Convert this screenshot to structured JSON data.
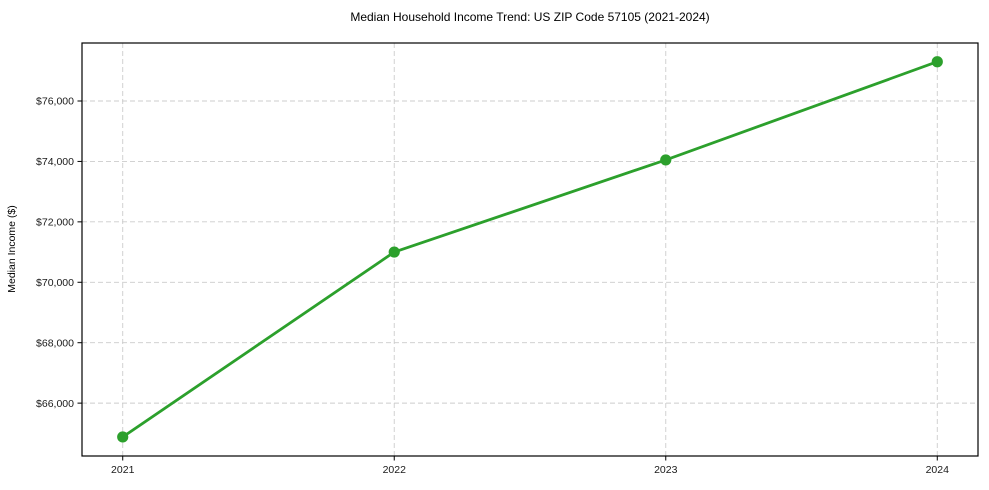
{
  "chart_data": {
    "type": "line",
    "title": "Median Household Income Trend: US ZIP Code 57105 (2021-2024)",
    "ylabel": "Median Income ($)",
    "xlabel": "",
    "x": [
      2021,
      2022,
      2023,
      2024
    ],
    "values": [
      64880,
      71000,
      74050,
      77300
    ],
    "xtick_labels": [
      "2021",
      "2022",
      "2023",
      "2024"
    ],
    "ytick_values": [
      66000,
      68000,
      70000,
      72000,
      74000,
      76000
    ],
    "ytick_labels": [
      "$66,000",
      "$68,000",
      "$70,000",
      "$72,000",
      "$74,000",
      "$76,000"
    ],
    "xlim": [
      2020.85,
      2024.15
    ],
    "ylim": [
      64250,
      77920
    ],
    "grid": true,
    "grid_style": "dashed",
    "legend": "none",
    "line_color": "#2ca02c",
    "marker_color": "#2ca02c",
    "grid_color": "#cccccc",
    "spine_color": "#000000",
    "background_color": "#ffffff"
  }
}
